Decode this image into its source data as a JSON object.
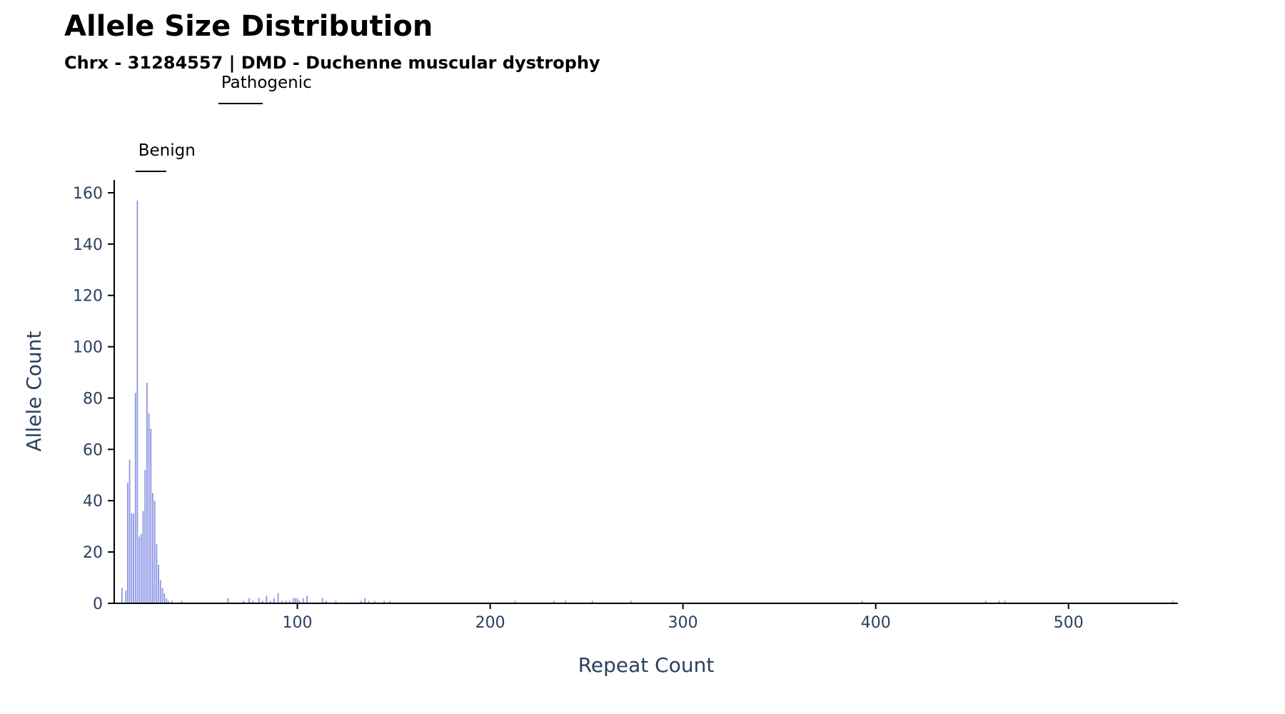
{
  "chart_data": {
    "type": "bar",
    "title": "Allele Size Distribution",
    "subtitle": "Chrx - 31284557 | DMD - Duchenne muscular dystrophy",
    "xlabel": "Repeat Count",
    "ylabel": "Allele Count",
    "xlim": [
      5,
      556
    ],
    "ylim": [
      0,
      165
    ],
    "xticks": [
      100,
      200,
      300,
      400,
      500
    ],
    "yticks": [
      0,
      20,
      40,
      60,
      80,
      100,
      120,
      140,
      160
    ],
    "grid": false,
    "bar_color": "#8c95e6",
    "ranges": [
      {
        "label": "Benign",
        "start": 16,
        "end": 32
      },
      {
        "label": "Pathogenic",
        "start": 59,
        "end": 82
      }
    ],
    "x": [
      9,
      11,
      12,
      13,
      14,
      15,
      16,
      17,
      18,
      19,
      20,
      21,
      22,
      23,
      24,
      25,
      26,
      27,
      28,
      29,
      30,
      31,
      32,
      33,
      35,
      40,
      64,
      72,
      75,
      77,
      80,
      82,
      84,
      86,
      88,
      90,
      92,
      94,
      96,
      98,
      99,
      100,
      101,
      103,
      105,
      113,
      115,
      120,
      133,
      135,
      137,
      140,
      145,
      148,
      213,
      233,
      239,
      253,
      273,
      393,
      457,
      464,
      467,
      554
    ],
    "values": [
      6,
      5,
      47,
      56,
      35,
      35,
      82,
      157,
      26,
      27,
      36,
      52,
      86,
      74,
      68,
      43,
      40,
      23,
      15,
      9,
      6,
      4,
      2,
      1,
      1,
      1,
      2,
      1,
      2,
      1,
      2,
      1,
      3,
      1,
      2,
      4,
      1,
      1,
      1,
      2,
      2,
      2,
      1,
      2,
      3,
      2,
      1,
      1,
      1,
      2,
      1,
      1,
      1,
      1,
      1,
      1,
      1,
      1,
      1,
      1,
      1,
      1,
      1,
      1
    ]
  }
}
